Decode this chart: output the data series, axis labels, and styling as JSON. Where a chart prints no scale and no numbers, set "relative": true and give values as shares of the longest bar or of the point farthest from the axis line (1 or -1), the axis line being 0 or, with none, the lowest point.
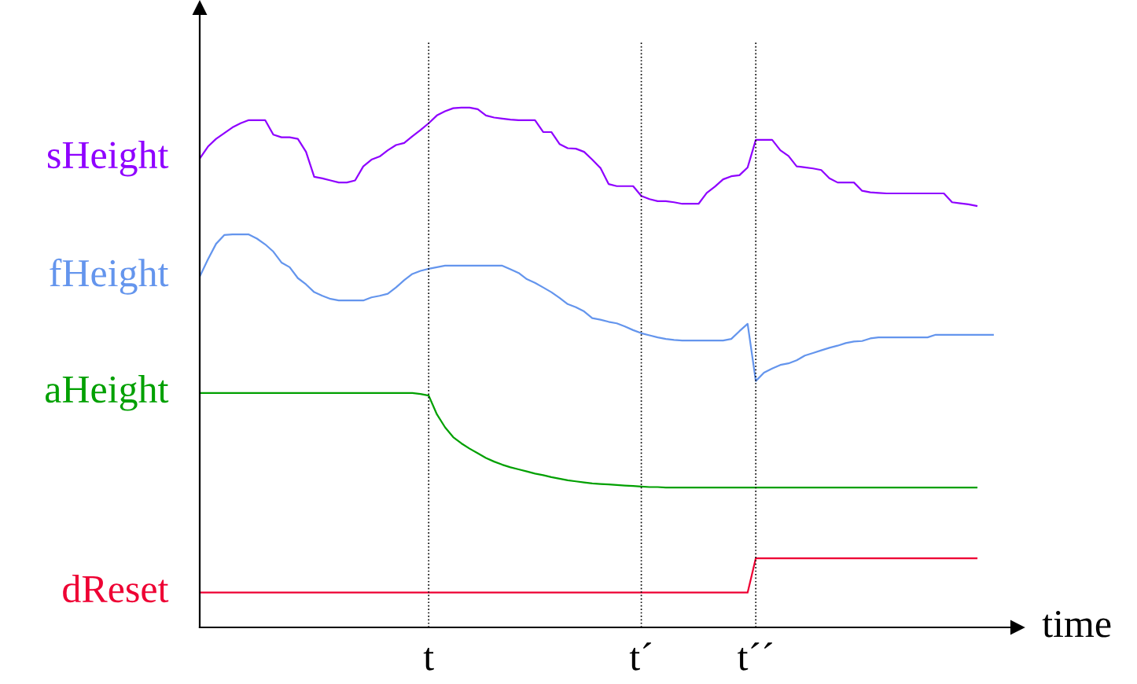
{
  "chart_data": {
    "type": "line",
    "relative": true,
    "xlabel": "time",
    "tick_labels": "x",
    "grid": "x",
    "line_style": "solid",
    "categories": [
      null,
      null,
      null,
      null,
      null,
      null,
      null,
      null,
      null,
      null,
      null,
      null,
      null,
      null,
      null,
      null,
      null,
      null,
      null,
      null,
      null,
      null,
      null,
      null,
      null,
      null,
      null,
      null,
      "t",
      null,
      null,
      null,
      null,
      null,
      null,
      null,
      null,
      null,
      null,
      null,
      null,
      null,
      null,
      null,
      null,
      null,
      null,
      null,
      null,
      null,
      null,
      null,
      null,
      null,
      "t´",
      null,
      null,
      null,
      null,
      null,
      null,
      null,
      null,
      null,
      null,
      null,
      null,
      null,
      "t´´",
      null,
      null,
      null,
      null,
      null,
      null,
      null,
      null,
      null,
      null,
      null,
      null,
      null,
      null,
      null,
      null,
      null,
      null,
      null,
      null,
      null,
      null,
      null,
      null,
      null,
      null,
      null,
      null,
      null
    ],
    "series": [
      {
        "name": "sHeight",
        "color": "#8f00ff",
        "values": [
          0.902,
          0.925,
          0.94,
          0.951,
          0.962,
          0.97,
          0.976,
          0.976,
          0.976,
          0.948,
          0.943,
          0.943,
          0.94,
          0.915,
          0.867,
          0.864,
          0.86,
          0.856,
          0.856,
          0.86,
          0.887,
          0.9,
          0.906,
          0.918,
          0.928,
          0.932,
          0.945,
          0.957,
          0.97,
          0.985,
          0.993,
          0.999,
          1.0,
          1.0,
          0.997,
          0.985,
          0.981,
          0.979,
          0.977,
          0.976,
          0.976,
          0.976,
          0.953,
          0.953,
          0.93,
          0.922,
          0.921,
          0.915,
          0.9,
          0.884,
          0.853,
          0.849,
          0.849,
          0.849,
          0.83,
          0.824,
          0.82,
          0.82,
          0.818,
          0.815,
          0.815,
          0.815,
          0.836,
          0.848,
          0.862,
          0.868,
          0.87,
          0.885,
          0.938,
          0.938,
          0.938,
          0.918,
          0.907,
          0.887,
          0.885,
          0.883,
          0.88,
          0.864,
          0.856,
          0.856,
          0.856,
          0.84,
          0.837,
          0.836,
          0.835,
          0.835,
          0.835,
          0.835,
          0.835,
          0.835,
          0.835,
          0.835,
          0.818,
          0.816,
          0.814,
          0.811,
          null,
          null
        ]
      },
      {
        "name": "fHeight",
        "color": "#6495ed",
        "values": [
          0.675,
          0.708,
          0.738,
          0.755,
          0.756,
          0.756,
          0.756,
          0.748,
          0.737,
          0.723,
          0.702,
          0.693,
          0.672,
          0.66,
          0.645,
          0.638,
          0.632,
          0.629,
          0.629,
          0.629,
          0.629,
          0.635,
          0.638,
          0.642,
          0.654,
          0.668,
          0.68,
          0.686,
          0.69,
          0.693,
          0.696,
          0.696,
          0.696,
          0.696,
          0.696,
          0.696,
          0.696,
          0.696,
          0.689,
          0.682,
          0.67,
          0.663,
          0.654,
          0.645,
          0.634,
          0.622,
          0.616,
          0.608,
          0.595,
          0.592,
          0.588,
          0.585,
          0.579,
          0.572,
          0.566,
          0.562,
          0.558,
          0.555,
          0.553,
          0.552,
          0.552,
          0.552,
          0.552,
          0.552,
          0.552,
          0.555,
          0.57,
          0.584,
          0.474,
          0.49,
          0.498,
          0.505,
          0.508,
          0.514,
          0.523,
          0.528,
          0.533,
          0.538,
          0.542,
          0.547,
          0.55,
          0.551,
          0.556,
          0.558,
          0.558,
          0.558,
          0.558,
          0.558,
          0.558,
          0.558,
          0.563,
          0.563,
          0.563,
          0.563,
          0.563,
          0.563,
          0.563,
          0.563
        ]
      },
      {
        "name": "aHeight",
        "color": "#00a000",
        "values": [
          0.451,
          0.451,
          0.451,
          0.451,
          0.451,
          0.451,
          0.451,
          0.451,
          0.451,
          0.451,
          0.451,
          0.451,
          0.451,
          0.451,
          0.451,
          0.451,
          0.451,
          0.451,
          0.451,
          0.451,
          0.451,
          0.451,
          0.451,
          0.451,
          0.451,
          0.451,
          0.451,
          0.449,
          0.446,
          0.41,
          0.385,
          0.366,
          0.354,
          0.344,
          0.335,
          0.326,
          0.319,
          0.313,
          0.308,
          0.304,
          0.3,
          0.296,
          0.293,
          0.289,
          0.286,
          0.283,
          0.281,
          0.279,
          0.277,
          0.276,
          0.275,
          0.274,
          0.273,
          0.272,
          0.271,
          0.27,
          0.27,
          0.269,
          0.269,
          0.269,
          0.269,
          0.269,
          0.269,
          0.269,
          0.269,
          0.269,
          0.269,
          0.269,
          0.269,
          0.269,
          0.269,
          0.269,
          0.269,
          0.269,
          0.269,
          0.269,
          0.269,
          0.269,
          0.269,
          0.269,
          0.269,
          0.269,
          0.269,
          0.269,
          0.269,
          0.269,
          0.269,
          0.269,
          0.269,
          0.269,
          0.269,
          0.269,
          0.269,
          0.269,
          0.269,
          0.269,
          null,
          null
        ]
      },
      {
        "name": "dReset",
        "color": "#ee0033",
        "values": [
          0.067,
          0.067,
          0.067,
          0.067,
          0.067,
          0.067,
          0.067,
          0.067,
          0.067,
          0.067,
          0.067,
          0.067,
          0.067,
          0.067,
          0.067,
          0.067,
          0.067,
          0.067,
          0.067,
          0.067,
          0.067,
          0.067,
          0.067,
          0.067,
          0.067,
          0.067,
          0.067,
          0.067,
          0.067,
          0.067,
          0.067,
          0.067,
          0.067,
          0.067,
          0.067,
          0.067,
          0.067,
          0.067,
          0.067,
          0.067,
          0.067,
          0.067,
          0.067,
          0.067,
          0.067,
          0.067,
          0.067,
          0.067,
          0.067,
          0.067,
          0.067,
          0.067,
          0.067,
          0.067,
          0.067,
          0.067,
          0.067,
          0.067,
          0.067,
          0.067,
          0.067,
          0.067,
          0.067,
          0.067,
          0.067,
          0.067,
          0.067,
          0.067,
          0.133,
          0.133,
          0.133,
          0.133,
          0.133,
          0.133,
          0.133,
          0.133,
          0.133,
          0.133,
          0.133,
          0.133,
          0.133,
          0.133,
          0.133,
          0.133,
          0.133,
          0.133,
          0.133,
          0.133,
          0.133,
          0.133,
          0.133,
          0.133,
          0.133,
          0.133,
          0.133,
          0.133,
          null,
          null
        ]
      }
    ]
  }
}
